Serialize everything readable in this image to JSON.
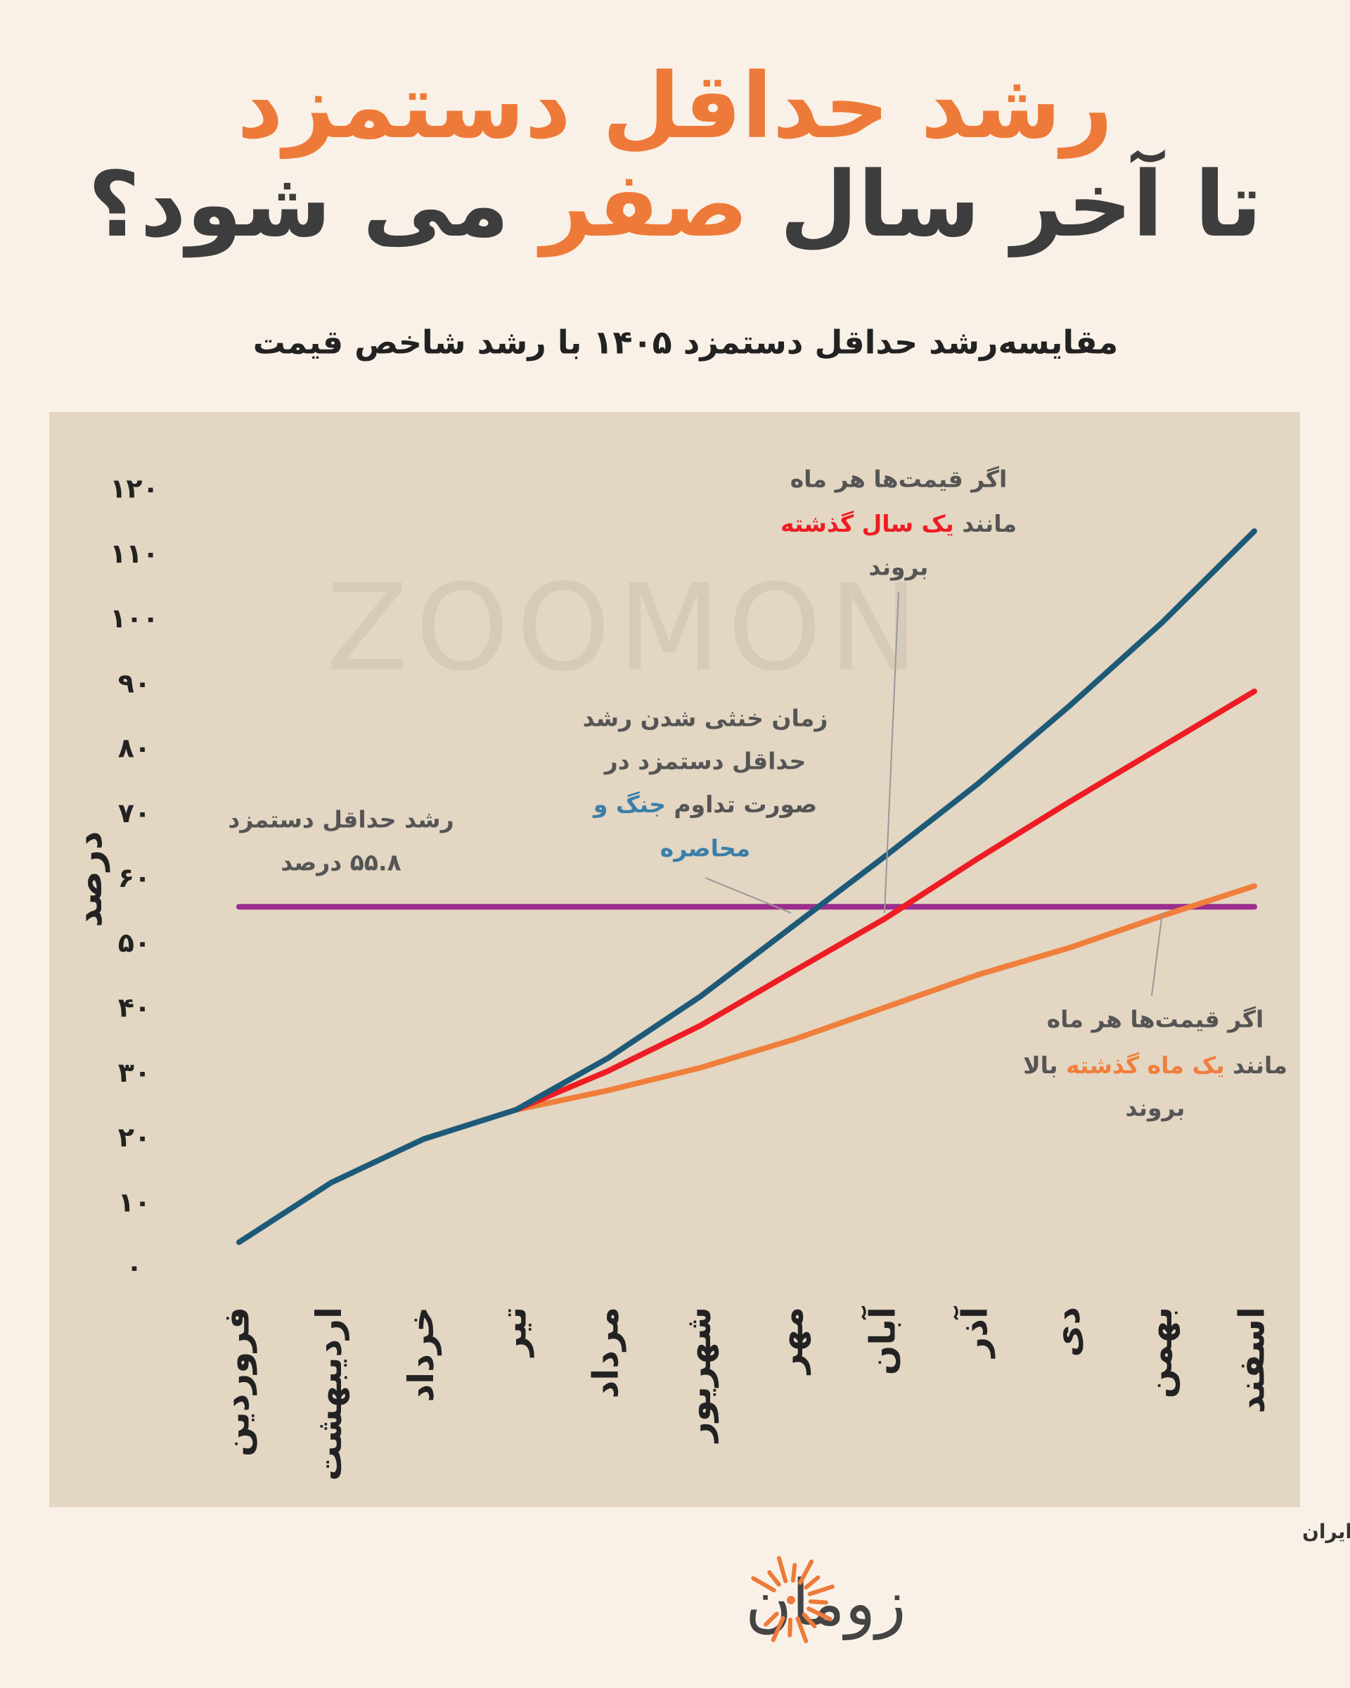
{
  "chart_data": {
    "type": "line",
    "title": {
      "line1": "رشد حداقل دستمزد",
      "line2": [
        "تا آخر سال",
        "صفر",
        "می شود؟"
      ]
    },
    "subtitle": "مقایسه‌رشد حداقل دستمزد ۱۴۰۵ با رشد شاخص قیمت",
    "y_label": "درصد",
    "watermark": "ZOOMON",
    "categories": [
      "فروردین",
      "اردیبهشت",
      "خرداد",
      "تیر",
      "مرداد",
      "شهریور",
      "مهر",
      "آبان",
      "آذر",
      "دی",
      "بهمن",
      "اسفند"
    ],
    "series": [
      {
        "color": "#9b2d8f",
        "values": [
          55.8,
          55.8,
          55.8,
          55.8,
          55.8,
          55.8,
          55.8,
          55.8,
          55.8,
          55.8,
          55.8,
          55.8
        ]
      },
      {
        "color": "#f07f3c",
        "values": [
          null,
          null,
          null,
          24.5,
          27.5,
          31,
          35.3,
          40.3,
          45.3,
          49.5,
          54.4,
          59
        ]
      },
      {
        "color": "#ee1d23",
        "values": [
          null,
          null,
          null,
          24.5,
          30.5,
          37.5,
          45.8,
          54,
          63.2,
          72,
          80.5,
          89
        ]
      },
      {
        "color": "#1d5a78",
        "values": [
          4.1,
          13.3,
          20,
          24.5,
          32.5,
          42,
          52.8,
          63.6,
          74.7,
          86.8,
          99.6,
          113.7
        ]
      }
    ],
    "ylim": [
      0,
      120
    ],
    "yticks": [
      {
        "value": 0,
        "label": "۰"
      },
      {
        "value": 10,
        "label": "۱۰"
      },
      {
        "value": 20,
        "label": "۲۰"
      },
      {
        "value": 30,
        "label": "۳۰"
      },
      {
        "value": 40,
        "label": "۴۰"
      },
      {
        "value": 50,
        "label": "۵۰"
      },
      {
        "value": 60,
        "label": "۶۰"
      },
      {
        "value": 70,
        "label": "۷۰"
      },
      {
        "value": 80,
        "label": "۸۰"
      },
      {
        "value": 90,
        "label": "۹۰"
      },
      {
        "value": 100,
        "label": "۱۰۰"
      },
      {
        "value": 110,
        "label": "۱۱۰"
      },
      {
        "value": 120,
        "label": "۱۲۰"
      }
    ],
    "grid": false,
    "annotations": [
      [
        [
          "اگر قیمت‌ها هر ماه"
        ],
        [
          "مانند",
          "یک سال گذشته"
        ],
        [
          "بروند"
        ]
      ],
      [
        [
          "زمان خنثی شدن رشد"
        ],
        [
          "حداقل دستمزد در"
        ],
        [
          "صورت تداوم",
          "جنگ و"
        ],
        [
          "محاصره"
        ]
      ],
      [
        [
          "رشد حداقل دستمزد"
        ],
        [
          "۵۵.۸ درصد"
        ]
      ],
      [
        [
          "اگر قیمت‌ها هر ماه"
        ],
        [
          "مانند",
          "یک ماه گذشته",
          "بالا"
        ],
        [
          "بروند"
        ]
      ]
    ],
    "source": "منبع داده: مرکز آمار ایران",
    "logo": "زومان"
  }
}
